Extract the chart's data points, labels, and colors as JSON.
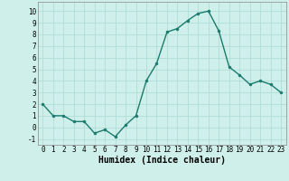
{
  "x": [
    0,
    1,
    2,
    3,
    4,
    5,
    6,
    7,
    8,
    9,
    10,
    11,
    12,
    13,
    14,
    15,
    16,
    17,
    18,
    19,
    20,
    21,
    22,
    23
  ],
  "y": [
    2,
    1,
    1,
    0.5,
    0.5,
    -0.5,
    -0.2,
    -0.8,
    0.2,
    1,
    4,
    5.5,
    8.2,
    8.5,
    9.2,
    9.8,
    10,
    8.3,
    5.2,
    4.5,
    3.7,
    4,
    3.7,
    3
  ],
  "line_color": "#1a7a6e",
  "marker": "o",
  "marker_size": 2.0,
  "line_width": 1.0,
  "xlabel": "Humidex (Indice chaleur)",
  "ylabel": "",
  "title": "",
  "xlim": [
    -0.5,
    23.5
  ],
  "ylim": [
    -1.5,
    10.8
  ],
  "yticks": [
    -1,
    0,
    1,
    2,
    3,
    4,
    5,
    6,
    7,
    8,
    9,
    10
  ],
  "xticks": [
    0,
    1,
    2,
    3,
    4,
    5,
    6,
    7,
    8,
    9,
    10,
    11,
    12,
    13,
    14,
    15,
    16,
    17,
    18,
    19,
    20,
    21,
    22,
    23
  ],
  "background_color": "#cff0ea",
  "grid_color": "#b0ddd6",
  "tick_label_fontsize": 5.5,
  "xlabel_fontsize": 7.0,
  "font_family": "monospace"
}
